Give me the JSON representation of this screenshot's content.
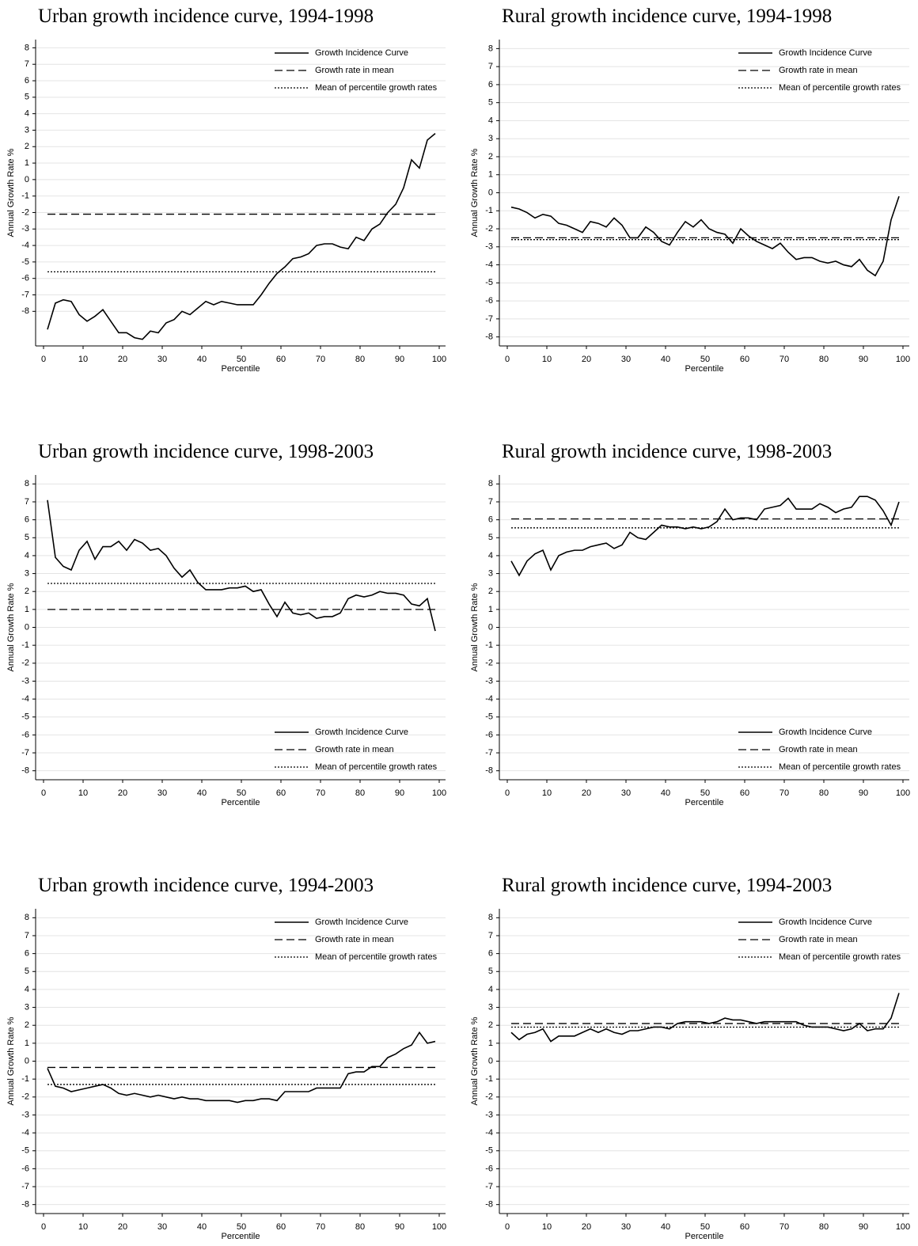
{
  "chart_data": [
    {
      "type": "line",
      "title": "Urban growth incidence curve, 1994-1998",
      "xlabel": "Percentile",
      "ylabel": "Annual Growth Rate %",
      "x": [
        1,
        3,
        5,
        7,
        9,
        11,
        13,
        15,
        17,
        19,
        21,
        23,
        25,
        27,
        29,
        31,
        33,
        35,
        37,
        39,
        41,
        43,
        45,
        47,
        49,
        51,
        53,
        55,
        57,
        59,
        61,
        63,
        65,
        67,
        69,
        71,
        73,
        75,
        77,
        79,
        81,
        83,
        85,
        87,
        89,
        91,
        93,
        95,
        97,
        99
      ],
      "xlim": [
        -2,
        101.6
      ],
      "xticks": [
        0,
        10,
        20,
        30,
        40,
        50,
        60,
        70,
        80,
        90,
        100
      ],
      "ylim": [
        -10.1,
        8.5
      ],
      "yticks": [
        -8,
        -7,
        -6,
        -5,
        -4,
        -3,
        -2,
        -1,
        0,
        1,
        2,
        3,
        4,
        5,
        6,
        7,
        8
      ],
      "grid": true,
      "legend": "upper right",
      "series": [
        {
          "name": "Growth Incidence Curve",
          "color": "#000000",
          "dash": "solid",
          "values": [
            -9.1,
            -7.5,
            -7.3,
            -7.4,
            -8.2,
            -8.6,
            -8.3,
            -7.9,
            -8.6,
            -9.3,
            -9.3,
            -9.6,
            -9.7,
            -9.2,
            -9.3,
            -8.7,
            -8.5,
            -8.0,
            -8.2,
            -7.8,
            -7.4,
            -7.6,
            -7.4,
            -7.5,
            -7.6,
            -7.6,
            -7.6,
            -7.0,
            -6.3,
            -5.7,
            -5.3,
            -4.8,
            -4.7,
            -4.5,
            -4.0,
            -3.9,
            -3.9,
            -4.1,
            -4.2,
            -3.5,
            -3.7,
            -3.0,
            -2.7,
            -2.0,
            -1.5,
            -0.5,
            1.2,
            0.7,
            2.4,
            2.8
          ]
        },
        {
          "name": "Growth rate in mean",
          "color": "#000000",
          "dash": "dashed",
          "x": [
            1,
            99
          ],
          "values": [
            -2.1,
            -2.1
          ]
        },
        {
          "name": "Mean of percentile growth rates",
          "color": "#000000",
          "dash": "dotted",
          "x": [
            1,
            99
          ],
          "values": [
            -5.6,
            -5.6
          ]
        }
      ]
    },
    {
      "type": "line",
      "title": "Rural growth incidence curve, 1994-1998",
      "xlabel": "Percentile",
      "ylabel": "Annual Growth Rate %",
      "x": [
        1,
        3,
        5,
        7,
        9,
        11,
        13,
        15,
        17,
        19,
        21,
        23,
        25,
        27,
        29,
        31,
        33,
        35,
        37,
        39,
        41,
        43,
        45,
        47,
        49,
        51,
        53,
        55,
        57,
        59,
        61,
        63,
        65,
        67,
        69,
        71,
        73,
        75,
        77,
        79,
        81,
        83,
        85,
        87,
        89,
        91,
        93,
        95,
        97,
        99
      ],
      "xlim": [
        -2,
        101.6
      ],
      "xticks": [
        0,
        10,
        20,
        30,
        40,
        50,
        60,
        70,
        80,
        90,
        100
      ],
      "ylim": [
        -8.5,
        8.5
      ],
      "yticks": [
        -8,
        -7,
        -6,
        -5,
        -4,
        -3,
        -2,
        -1,
        0,
        1,
        2,
        3,
        4,
        5,
        6,
        7,
        8
      ],
      "grid": true,
      "legend": "upper right",
      "series": [
        {
          "name": "Growth Incidence Curve",
          "color": "#000000",
          "dash": "solid",
          "values": [
            -0.8,
            -0.9,
            -1.1,
            -1.4,
            -1.2,
            -1.3,
            -1.7,
            -1.8,
            -2.0,
            -2.2,
            -1.6,
            -1.7,
            -1.9,
            -1.4,
            -1.8,
            -2.5,
            -2.5,
            -1.9,
            -2.2,
            -2.7,
            -2.9,
            -2.2,
            -1.6,
            -1.9,
            -1.5,
            -2.0,
            -2.2,
            -2.3,
            -2.8,
            -2.0,
            -2.4,
            -2.7,
            -2.9,
            -3.1,
            -2.8,
            -3.3,
            -3.7,
            -3.6,
            -3.6,
            -3.8,
            -3.9,
            -3.8,
            -4.0,
            -4.1,
            -3.7,
            -4.3,
            -4.6,
            -3.8,
            -1.5,
            -0.2
          ]
        },
        {
          "name": "Growth rate in mean",
          "color": "#000000",
          "dash": "dashed",
          "x": [
            1,
            99
          ],
          "values": [
            -2.5,
            -2.5
          ]
        },
        {
          "name": "Mean of percentile growth rates",
          "color": "#000000",
          "dash": "dotted",
          "x": [
            1,
            99
          ],
          "values": [
            -2.6,
            -2.6
          ]
        }
      ]
    },
    {
      "type": "line",
      "title": "Urban growth incidence curve, 1998-2003",
      "xlabel": "Percentile",
      "ylabel": "Annual Growth Rate %",
      "x": [
        1,
        3,
        5,
        7,
        9,
        11,
        13,
        15,
        17,
        19,
        21,
        23,
        25,
        27,
        29,
        31,
        33,
        35,
        37,
        39,
        41,
        43,
        45,
        47,
        49,
        51,
        53,
        55,
        57,
        59,
        61,
        63,
        65,
        67,
        69,
        71,
        73,
        75,
        77,
        79,
        81,
        83,
        85,
        87,
        89,
        91,
        93,
        95,
        97,
        99
      ],
      "xlim": [
        -2,
        101.6
      ],
      "xticks": [
        0,
        10,
        20,
        30,
        40,
        50,
        60,
        70,
        80,
        90,
        100
      ],
      "ylim": [
        -8.5,
        8.5
      ],
      "yticks": [
        -8,
        -7,
        -6,
        -5,
        -4,
        -3,
        -2,
        -1,
        0,
        1,
        2,
        3,
        4,
        5,
        6,
        7,
        8
      ],
      "grid": true,
      "legend": "lower right",
      "series": [
        {
          "name": "Growth Incidence Curve",
          "color": "#000000",
          "dash": "solid",
          "values": [
            7.1,
            3.9,
            3.4,
            3.2,
            4.3,
            4.8,
            3.8,
            4.5,
            4.5,
            4.8,
            4.3,
            4.9,
            4.7,
            4.3,
            4.4,
            4.0,
            3.3,
            2.8,
            3.2,
            2.5,
            2.1,
            2.1,
            2.1,
            2.2,
            2.2,
            2.3,
            2.0,
            2.1,
            1.3,
            0.6,
            1.4,
            0.8,
            0.7,
            0.8,
            0.5,
            0.6,
            0.6,
            0.8,
            1.6,
            1.8,
            1.7,
            1.8,
            2.0,
            1.9,
            1.9,
            1.8,
            1.3,
            1.2,
            1.6,
            -0.2
          ]
        },
        {
          "name": "Growth rate in mean",
          "color": "#000000",
          "dash": "dashed",
          "x": [
            1,
            99
          ],
          "values": [
            1.0,
            1.0
          ]
        },
        {
          "name": "Mean of percentile growth rates",
          "color": "#000000",
          "dash": "dotted",
          "x": [
            1,
            99
          ],
          "values": [
            2.45,
            2.45
          ]
        }
      ]
    },
    {
      "type": "line",
      "title": "Rural growth incidence curve, 1998-2003",
      "xlabel": "Percentile",
      "ylabel": "Annual Growth Rate %",
      "x": [
        1,
        3,
        5,
        7,
        9,
        11,
        13,
        15,
        17,
        19,
        21,
        23,
        25,
        27,
        29,
        31,
        33,
        35,
        37,
        39,
        41,
        43,
        45,
        47,
        49,
        51,
        53,
        55,
        57,
        59,
        61,
        63,
        65,
        67,
        69,
        71,
        73,
        75,
        77,
        79,
        81,
        83,
        85,
        87,
        89,
        91,
        93,
        95,
        97,
        99
      ],
      "xlim": [
        -2,
        101.6
      ],
      "xticks": [
        0,
        10,
        20,
        30,
        40,
        50,
        60,
        70,
        80,
        90,
        100
      ],
      "ylim": [
        -8.5,
        8.5
      ],
      "yticks": [
        -8,
        -7,
        -6,
        -5,
        -4,
        -3,
        -2,
        -1,
        0,
        1,
        2,
        3,
        4,
        5,
        6,
        7,
        8
      ],
      "grid": true,
      "legend": "lower right",
      "series": [
        {
          "name": "Growth Incidence Curve",
          "color": "#000000",
          "dash": "solid",
          "values": [
            3.7,
            2.9,
            3.7,
            4.1,
            4.3,
            3.2,
            4.0,
            4.2,
            4.3,
            4.3,
            4.5,
            4.6,
            4.7,
            4.4,
            4.6,
            5.3,
            5.0,
            4.9,
            5.3,
            5.7,
            5.6,
            5.6,
            5.5,
            5.6,
            5.5,
            5.6,
            5.9,
            6.6,
            6.0,
            6.1,
            6.1,
            6.0,
            6.6,
            6.7,
            6.8,
            7.2,
            6.6,
            6.6,
            6.6,
            6.9,
            6.7,
            6.4,
            6.6,
            6.7,
            7.3,
            7.3,
            7.1,
            6.5,
            5.7,
            7.0
          ]
        },
        {
          "name": "Growth rate in mean",
          "color": "#000000",
          "dash": "dashed",
          "x": [
            1,
            99
          ],
          "values": [
            6.05,
            6.05
          ]
        },
        {
          "name": "Mean of percentile growth rates",
          "color": "#000000",
          "dash": "dotted",
          "x": [
            1,
            99
          ],
          "values": [
            5.55,
            5.55
          ]
        }
      ]
    },
    {
      "type": "line",
      "title": "Urban growth incidence curve, 1994-2003",
      "xlabel": "Percentile",
      "ylabel": "Annual Growth Rate %",
      "x": [
        1,
        3,
        5,
        7,
        9,
        11,
        13,
        15,
        17,
        19,
        21,
        23,
        25,
        27,
        29,
        31,
        33,
        35,
        37,
        39,
        41,
        43,
        45,
        47,
        49,
        51,
        53,
        55,
        57,
        59,
        61,
        63,
        65,
        67,
        69,
        71,
        73,
        75,
        77,
        79,
        81,
        83,
        85,
        87,
        89,
        91,
        93,
        95,
        97,
        99
      ],
      "xlim": [
        -2,
        101.6
      ],
      "xticks": [
        0,
        10,
        20,
        30,
        40,
        50,
        60,
        70,
        80,
        90,
        100
      ],
      "ylim": [
        -8.5,
        8.5
      ],
      "yticks": [
        -8,
        -7,
        -6,
        -5,
        -4,
        -3,
        -2,
        -1,
        0,
        1,
        2,
        3,
        4,
        5,
        6,
        7,
        8
      ],
      "grid": true,
      "legend": "upper right",
      "series": [
        {
          "name": "Growth Incidence Curve",
          "color": "#000000",
          "dash": "solid",
          "values": [
            -0.4,
            -1.4,
            -1.5,
            -1.7,
            -1.6,
            -1.5,
            -1.4,
            -1.3,
            -1.5,
            -1.8,
            -1.9,
            -1.8,
            -1.9,
            -2.0,
            -1.9,
            -2.0,
            -2.1,
            -2.0,
            -2.1,
            -2.1,
            -2.2,
            -2.2,
            -2.2,
            -2.2,
            -2.3,
            -2.2,
            -2.2,
            -2.1,
            -2.1,
            -2.2,
            -1.7,
            -1.7,
            -1.7,
            -1.7,
            -1.5,
            -1.5,
            -1.5,
            -1.5,
            -0.7,
            -0.6,
            -0.6,
            -0.3,
            -0.3,
            0.2,
            0.4,
            0.7,
            0.9,
            1.6,
            1.0,
            1.1
          ]
        },
        {
          "name": "Growth rate in mean",
          "color": "#000000",
          "dash": "dashed",
          "x": [
            1,
            99
          ],
          "values": [
            -0.35,
            -0.35
          ]
        },
        {
          "name": "Mean of percentile growth rates",
          "color": "#000000",
          "dash": "dotted",
          "x": [
            1,
            99
          ],
          "values": [
            -1.3,
            -1.3
          ]
        }
      ]
    },
    {
      "type": "line",
      "title": "Rural growth incidence curve, 1994-2003",
      "xlabel": "Percentile",
      "ylabel": "Annual Growth Rate %",
      "x": [
        1,
        3,
        5,
        7,
        9,
        11,
        13,
        15,
        17,
        19,
        21,
        23,
        25,
        27,
        29,
        31,
        33,
        35,
        37,
        39,
        41,
        43,
        45,
        47,
        49,
        51,
        53,
        55,
        57,
        59,
        61,
        63,
        65,
        67,
        69,
        71,
        73,
        75,
        77,
        79,
        81,
        83,
        85,
        87,
        89,
        91,
        93,
        95,
        97,
        99
      ],
      "xlim": [
        -2,
        101.6
      ],
      "xticks": [
        0,
        10,
        20,
        30,
        40,
        50,
        60,
        70,
        80,
        90,
        100
      ],
      "ylim": [
        -8.5,
        8.5
      ],
      "yticks": [
        -8,
        -7,
        -6,
        -5,
        -4,
        -3,
        -2,
        -1,
        0,
        1,
        2,
        3,
        4,
        5,
        6,
        7,
        8
      ],
      "grid": true,
      "legend": "upper right",
      "series": [
        {
          "name": "Growth Incidence Curve",
          "color": "#000000",
          "dash": "solid",
          "values": [
            1.6,
            1.2,
            1.5,
            1.6,
            1.8,
            1.1,
            1.4,
            1.4,
            1.4,
            1.6,
            1.8,
            1.6,
            1.8,
            1.6,
            1.5,
            1.7,
            1.7,
            1.8,
            1.9,
            1.9,
            1.8,
            2.1,
            2.2,
            2.2,
            2.2,
            2.1,
            2.2,
            2.4,
            2.3,
            2.3,
            2.2,
            2.1,
            2.2,
            2.2,
            2.2,
            2.2,
            2.2,
            2.0,
            1.9,
            1.9,
            1.9,
            1.8,
            1.7,
            1.8,
            2.1,
            1.7,
            1.8,
            1.8,
            2.4,
            3.8
          ]
        },
        {
          "name": "Growth rate in mean",
          "color": "#000000",
          "dash": "dashed",
          "x": [
            1,
            99
          ],
          "values": [
            2.1,
            2.1
          ]
        },
        {
          "name": "Mean of percentile growth rates",
          "color": "#000000",
          "dash": "dotted",
          "x": [
            1,
            99
          ],
          "values": [
            1.9,
            1.9
          ]
        }
      ]
    }
  ]
}
